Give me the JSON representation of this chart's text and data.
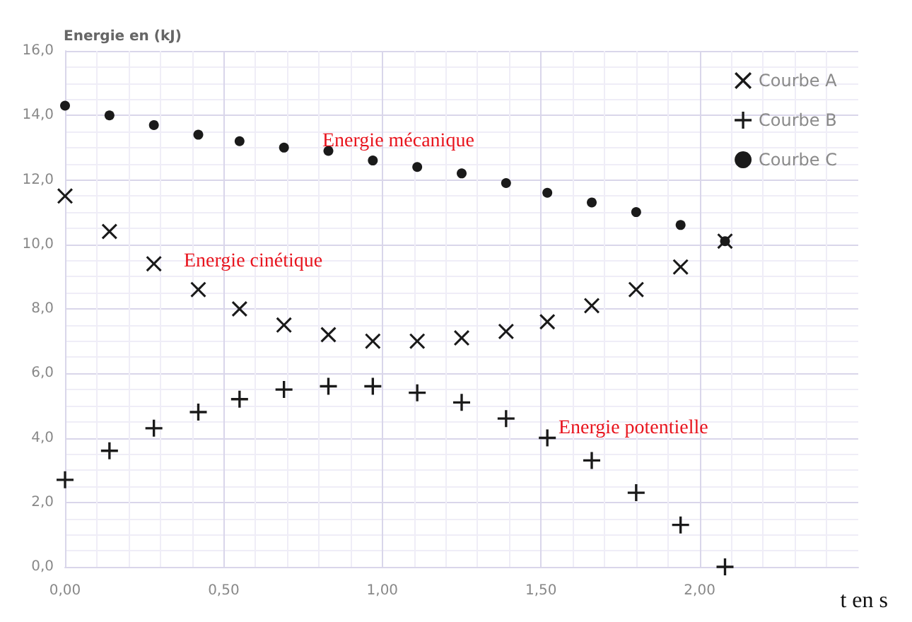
{
  "chart_data": {
    "type": "scatter",
    "ylabel": "Energie en (kJ)",
    "xlabel": "t en s",
    "x": [
      0,
      0.14,
      0.28,
      0.42,
      0.55,
      0.69,
      0.83,
      0.97,
      1.11,
      1.25,
      1.39,
      1.52,
      1.66,
      1.8,
      1.94,
      2.08
    ],
    "series": [
      {
        "name": "Courbe A",
        "color": "#1a1a1a",
        "marker": "x",
        "values": [
          11.5,
          10.4,
          9.4,
          8.6,
          8.0,
          7.5,
          7.2,
          7.0,
          7.0,
          7.1,
          7.3,
          7.6,
          8.1,
          8.6,
          9.3,
          10.1
        ]
      },
      {
        "name": "Courbe B",
        "color": "#1a1a1a",
        "marker": "cross",
        "values": [
          2.7,
          3.6,
          4.3,
          4.8,
          5.2,
          5.5,
          5.6,
          5.6,
          5.4,
          5.1,
          4.6,
          4.0,
          3.3,
          2.3,
          1.3,
          0.0
        ]
      },
      {
        "name": "Courbe C",
        "color": "#1a1a1a",
        "marker": "circle",
        "values": [
          14.3,
          14.0,
          13.7,
          13.4,
          13.2,
          13.0,
          12.9,
          12.6,
          12.4,
          12.2,
          11.9,
          11.6,
          11.3,
          11.0,
          10.6,
          10.1
        ]
      }
    ],
    "xlim": [
      0,
      2.5
    ],
    "xticks": [
      {
        "value": 0,
        "label": "0,00"
      },
      {
        "value": 0.5,
        "label": "0,50"
      },
      {
        "value": 1,
        "label": "1,00"
      },
      {
        "value": 1.5,
        "label": "1,50"
      },
      {
        "value": 2,
        "label": "2,00"
      }
    ],
    "ylim": [
      0,
      16
    ],
    "yticks": [
      {
        "value": 0,
        "label": "0,0"
      },
      {
        "value": 2,
        "label": "2,0"
      },
      {
        "value": 4,
        "label": "4,0"
      },
      {
        "value": 6,
        "label": "6,0"
      },
      {
        "value": 8,
        "label": "8,0"
      },
      {
        "value": 10,
        "label": "10,0"
      },
      {
        "value": 12,
        "label": "12,0"
      },
      {
        "value": 14,
        "label": "14,0"
      },
      {
        "value": 16,
        "label": "16,0"
      }
    ],
    "annotations": [
      "Energie mécanique",
      "Energie cinétique",
      "Energie potentielle"
    ],
    "grid": true,
    "legend": "top right"
  }
}
